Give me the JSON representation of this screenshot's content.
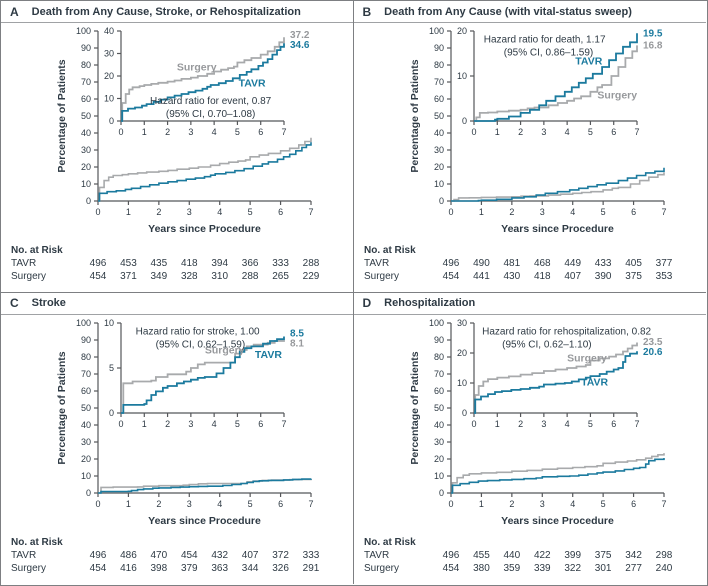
{
  "theme": {
    "tavr_blue": "#1b7a9e",
    "surgery_gray": "#a8aaac",
    "surgery_label_gray": "#97999c",
    "text_dark": "#2e3a44",
    "axis_color": "#55575a"
  },
  "shared": {
    "y_axis_label": "Percentage of Patients",
    "x_axis_label": "Years since Procedure",
    "risk_header": "No. at Risk",
    "main_yticks": [
      0,
      10,
      20,
      30,
      40,
      50,
      60,
      70,
      80,
      90,
      100
    ],
    "xticks": [
      0,
      1,
      2,
      3,
      4,
      5,
      6,
      7
    ]
  },
  "chart_data": [
    {
      "type": "line",
      "panel": "A",
      "title": "Death from Any Cause, Stroke, or Rehospitalization",
      "hr_line1": "Hazard ratio for event, 0.87",
      "hr_line2": "(95% CI, 0.70–1.08)",
      "hr_pos": {
        "anchor": "middle",
        "fx": 0.55,
        "fy": 0.72
      },
      "xlabel": "Years since Procedure",
      "ylabel": "Percentage of Patients",
      "main_ylim": [
        0,
        100
      ],
      "inset_ylim": [
        0,
        40
      ],
      "inset_yticks": [
        0,
        10,
        20,
        30,
        40
      ],
      "xlim": [
        0,
        7
      ],
      "series": [
        {
          "name": "Surgery",
          "color": "#a8aaac",
          "label_color": "#97999c",
          "end_label": "37.2",
          "label_pos": [
            2.4,
            22.5
          ],
          "points": [
            [
              0,
              0
            ],
            [
              0.05,
              8
            ],
            [
              0.2,
              12
            ],
            [
              0.35,
              14
            ],
            [
              0.5,
              15
            ],
            [
              0.8,
              15.5
            ],
            [
              1,
              16
            ],
            [
              1.3,
              16.5
            ],
            [
              1.6,
              17
            ],
            [
              2,
              17.5
            ],
            [
              2.3,
              18
            ],
            [
              2.6,
              18.7
            ],
            [
              3,
              19.3
            ],
            [
              3.3,
              20
            ],
            [
              3.7,
              21
            ],
            [
              4,
              22
            ],
            [
              4.3,
              22.8
            ],
            [
              4.6,
              23.5
            ],
            [
              4.85,
              24.2
            ],
            [
              5,
              26
            ],
            [
              5.3,
              27
            ],
            [
              5.6,
              28
            ],
            [
              6,
              29.5
            ],
            [
              6.3,
              31
            ],
            [
              6.6,
              33
            ],
            [
              6.8,
              35
            ],
            [
              7,
              37.2
            ]
          ]
        },
        {
          "name": "TAVR",
          "color": "#1b7a9e",
          "label_color": "#1b7a9e",
          "end_label": "34.6",
          "label_pos": [
            5.05,
            15.3
          ],
          "points": [
            [
              0,
              0
            ],
            [
              0.05,
              4.5
            ],
            [
              0.3,
              5.5
            ],
            [
              0.6,
              6
            ],
            [
              0.9,
              6.8
            ],
            [
              1.1,
              7.5
            ],
            [
              1.4,
              8.5
            ],
            [
              1.7,
              9.5
            ],
            [
              2,
              10.5
            ],
            [
              2.3,
              11.3
            ],
            [
              2.6,
              12
            ],
            [
              2.9,
              12.8
            ],
            [
              3.2,
              13.5
            ],
            [
              3.5,
              14.3
            ],
            [
              3.7,
              15.2
            ],
            [
              3.85,
              16
            ],
            [
              4.2,
              16.8
            ],
            [
              4.5,
              17.8
            ],
            [
              4.8,
              19
            ],
            [
              5.1,
              20.5
            ],
            [
              5.4,
              21.8
            ],
            [
              5.6,
              23
            ],
            [
              5.9,
              24.5
            ],
            [
              6.1,
              26
            ],
            [
              6.3,
              27.5
            ],
            [
              6.5,
              29.5
            ],
            [
              6.7,
              31.5
            ],
            [
              6.85,
              33
            ],
            [
              7,
              34.6
            ]
          ]
        }
      ],
      "end_label_order": [
        "37.2",
        "34.6"
      ],
      "risk_rows": [
        {
          "label": "TAVR",
          "values": [
            496,
            453,
            435,
            418,
            394,
            366,
            333,
            288
          ]
        },
        {
          "label": "Surgery",
          "values": [
            454,
            371,
            349,
            328,
            310,
            288,
            265,
            229
          ]
        }
      ]
    },
    {
      "type": "line",
      "panel": "B",
      "title": "Death from Any Cause (with vital-status sweep)",
      "hr_line1": "Hazard ratio for death, 1.17",
      "hr_line2": "(95% CI, 0.86–1.59)",
      "hr_pos": {
        "anchor": "start",
        "fx": 0.06,
        "fy": 0.04
      },
      "xlabel": "Years since Procedure",
      "ylabel": "Percentage of Patients",
      "main_ylim": [
        0,
        100
      ],
      "inset_ylim": [
        0,
        20
      ],
      "inset_yticks": [
        0,
        10,
        20
      ],
      "xlim": [
        0,
        7
      ],
      "series": [
        {
          "name": "Surgery",
          "color": "#a8aaac",
          "label_color": "#97999c",
          "end_label": "16.8",
          "label_pos": [
            5.3,
            5.0
          ],
          "points": [
            [
              0,
              0
            ],
            [
              0.1,
              0.8
            ],
            [
              0.25,
              1.8
            ],
            [
              0.6,
              1.9
            ],
            [
              1,
              2.1
            ],
            [
              1.5,
              2.3
            ],
            [
              2,
              2.5
            ],
            [
              2.3,
              2.8
            ],
            [
              2.6,
              3
            ],
            [
              3.2,
              3.5
            ],
            [
              3.6,
              4
            ],
            [
              4,
              4.5
            ],
            [
              4.3,
              5
            ],
            [
              4.6,
              5.5
            ],
            [
              5,
              6.5
            ],
            [
              5.3,
              7.5
            ],
            [
              5.5,
              8
            ],
            [
              5.9,
              10
            ],
            [
              6.2,
              12
            ],
            [
              6.5,
              14
            ],
            [
              6.8,
              15.5
            ],
            [
              7,
              16.8
            ]
          ]
        },
        {
          "name": "TAVR",
          "color": "#1b7a9e",
          "label_color": "#1b7a9e",
          "end_label": "19.5",
          "label_pos": [
            4.35,
            12.6
          ],
          "points": [
            [
              0,
              0
            ],
            [
              0.9,
              0.3
            ],
            [
              1,
              0.5
            ],
            [
              1.5,
              1
            ],
            [
              2,
              1.8
            ],
            [
              2.4,
              2.5
            ],
            [
              2.8,
              3.5
            ],
            [
              3.1,
              4.5
            ],
            [
              3.5,
              5.5
            ],
            [
              3.9,
              6.5
            ],
            [
              4.2,
              7.5
            ],
            [
              4.5,
              8.5
            ],
            [
              4.8,
              9.5
            ],
            [
              5.1,
              10.5
            ],
            [
              5.5,
              12
            ],
            [
              5.8,
              13.5
            ],
            [
              6.1,
              15
            ],
            [
              6.4,
              16.5
            ],
            [
              6.7,
              17.5
            ],
            [
              7,
              19.5
            ]
          ]
        }
      ],
      "end_label_order": [
        "19.5",
        "16.8"
      ],
      "risk_rows": [
        {
          "label": "TAVR",
          "values": [
            496,
            490,
            481,
            468,
            449,
            433,
            405,
            377
          ]
        },
        {
          "label": "Surgery",
          "values": [
            454,
            441,
            430,
            418,
            407,
            390,
            375,
            353
          ]
        }
      ]
    },
    {
      "type": "line",
      "panel": "C",
      "title": "Stroke",
      "hr_line1": "Hazard ratio for stroke, 1.00",
      "hr_line2": "(95% CI, 0.62–1.59)",
      "hr_pos": {
        "anchor": "start",
        "fx": 0.09,
        "fy": 0.04
      },
      "xlabel": "Years since Procedure",
      "ylabel": "Percentage of Patients",
      "main_ylim": [
        0,
        100
      ],
      "inset_ylim": [
        0,
        10
      ],
      "inset_yticks": [
        0,
        5,
        10
      ],
      "xlim": [
        0,
        7
      ],
      "series": [
        {
          "name": "Surgery",
          "color": "#a8aaac",
          "label_color": "#97999c",
          "end_label": "8.1",
          "label_pos": [
            3.6,
            6.6
          ],
          "points": [
            [
              0,
              0
            ],
            [
              0.1,
              3.3
            ],
            [
              0.5,
              3.5
            ],
            [
              1.3,
              3.6
            ],
            [
              1.5,
              4
            ],
            [
              2,
              4.3
            ],
            [
              2.8,
              4.6
            ],
            [
              3,
              5
            ],
            [
              3.3,
              5.4
            ],
            [
              3.6,
              5.6
            ],
            [
              4.9,
              6.6
            ],
            [
              5.1,
              7
            ],
            [
              5.4,
              7.4
            ],
            [
              5.7,
              7.6
            ],
            [
              6.3,
              7.8
            ],
            [
              6.6,
              8
            ],
            [
              7,
              8.1
            ]
          ]
        },
        {
          "name": "TAVR",
          "color": "#1b7a9e",
          "label_color": "#1b7a9e",
          "end_label": "8.5",
          "label_pos": [
            5.75,
            6.1
          ],
          "points": [
            [
              0,
              0
            ],
            [
              0.1,
              0.9
            ],
            [
              1,
              1
            ],
            [
              1.1,
              1.4
            ],
            [
              1.3,
              2
            ],
            [
              1.5,
              2.4
            ],
            [
              1.8,
              2.8
            ],
            [
              2,
              3
            ],
            [
              2.4,
              3.3
            ],
            [
              2.7,
              3.5
            ],
            [
              3,
              3.7
            ],
            [
              3.3,
              3.9
            ],
            [
              3.6,
              4
            ],
            [
              4.1,
              4.4
            ],
            [
              4.4,
              5
            ],
            [
              4.7,
              5.6
            ],
            [
              4.9,
              6.2
            ],
            [
              5.1,
              6.8
            ],
            [
              5.3,
              7.2
            ],
            [
              5.6,
              7.4
            ],
            [
              6.1,
              7.7
            ],
            [
              6.4,
              8
            ],
            [
              6.7,
              8.2
            ],
            [
              7,
              8.5
            ]
          ]
        }
      ],
      "end_label_order": [
        "8.5",
        "8.1"
      ],
      "risk_rows": [
        {
          "label": "TAVR",
          "values": [
            496,
            486,
            470,
            454,
            432,
            407,
            372,
            333
          ]
        },
        {
          "label": "Surgery",
          "values": [
            454,
            416,
            398,
            379,
            363,
            344,
            326,
            291
          ]
        }
      ]
    },
    {
      "type": "line",
      "panel": "D",
      "title": "Rehospitalization",
      "hr_line1": "Hazard ratio for rehospitalization, 0.82",
      "hr_line2": "(95% CI, 0.62–1.10)",
      "hr_pos": {
        "anchor": "start",
        "fx": 0.05,
        "fy": 0.04
      },
      "xlabel": "Years since Procedure",
      "ylabel": "Percentage of Patients",
      "main_ylim": [
        0,
        100
      ],
      "inset_ylim": [
        0,
        30
      ],
      "inset_yticks": [
        0,
        10,
        20,
        30
      ],
      "xlim": [
        0,
        7
      ],
      "series": [
        {
          "name": "Surgery",
          "color": "#a8aaac",
          "label_color": "#97999c",
          "end_label": "23.5",
          "label_pos": [
            4.0,
            17.2
          ],
          "points": [
            [
              0,
              0
            ],
            [
              0.05,
              6
            ],
            [
              0.2,
              9
            ],
            [
              0.4,
              10.5
            ],
            [
              0.6,
              11.3
            ],
            [
              1,
              11.8
            ],
            [
              1.5,
              12.2
            ],
            [
              2,
              12.8
            ],
            [
              2.5,
              13.3
            ],
            [
              3,
              14
            ],
            [
              3.5,
              14.5
            ],
            [
              4,
              15
            ],
            [
              4.4,
              15.5
            ],
            [
              4.8,
              16
            ],
            [
              5,
              17.5
            ],
            [
              5.4,
              18.2
            ],
            [
              5.8,
              18.8
            ],
            [
              6.1,
              19.5
            ],
            [
              6.4,
              20.5
            ],
            [
              6.6,
              21.5
            ],
            [
              6.8,
              22.5
            ],
            [
              7,
              23.5
            ]
          ]
        },
        {
          "name": "TAVR",
          "color": "#1b7a9e",
          "label_color": "#1b7a9e",
          "end_label": "20.6",
          "label_pos": [
            4.6,
            9.2
          ],
          "points": [
            [
              0,
              0
            ],
            [
              0.05,
              4.5
            ],
            [
              0.3,
              5.5
            ],
            [
              0.6,
              6.3
            ],
            [
              0.9,
              7
            ],
            [
              1.2,
              7.3
            ],
            [
              1.6,
              7.7
            ],
            [
              2,
              8
            ],
            [
              2.4,
              8.4
            ],
            [
              2.8,
              8.8
            ],
            [
              3,
              9.5
            ],
            [
              3.5,
              9.8
            ],
            [
              3.9,
              10
            ],
            [
              4.2,
              10.5
            ],
            [
              4.5,
              11.2
            ],
            [
              4.8,
              11.8
            ],
            [
              5,
              12.3
            ],
            [
              5.4,
              13
            ],
            [
              5.7,
              13.8
            ],
            [
              6,
              14.5
            ],
            [
              6.2,
              15
            ],
            [
              6.4,
              17
            ],
            [
              6.5,
              19
            ],
            [
              6.7,
              19.8
            ],
            [
              7,
              20.6
            ]
          ]
        }
      ],
      "end_label_order": [
        "23.5",
        "20.6"
      ],
      "risk_rows": [
        {
          "label": "TAVR",
          "values": [
            496,
            455,
            440,
            422,
            399,
            375,
            342,
            298
          ]
        },
        {
          "label": "Surgery",
          "values": [
            454,
            380,
            359,
            339,
            322,
            301,
            277,
            240
          ]
        }
      ]
    }
  ]
}
